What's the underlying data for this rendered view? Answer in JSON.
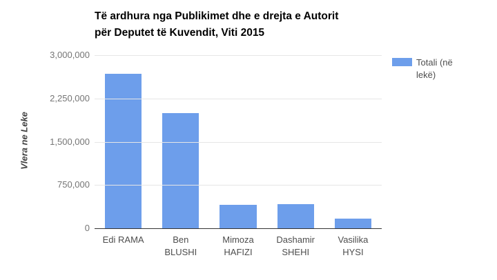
{
  "chart_data": {
    "type": "bar",
    "title": "Të ardhura nga Publikimet dhe e drejta e Autorit për Deputet të Kuvendit, Viti 2015",
    "title_lines": [
      "Të ardhura nga Publikimet dhe e drejta e Autorit",
      "për Deputet të Kuvendit, Viti 2015"
    ],
    "ylabel": "Vlera ne Leke",
    "xlabel": "",
    "categories": [
      "Edi RAMA",
      "Ben BLUSHI",
      "Mimoza HAFIZI",
      "Dashamir SHEHI",
      "Vasilika HYSI"
    ],
    "category_lines": [
      [
        "Edi RAMA"
      ],
      [
        "Ben",
        "BLUSHI"
      ],
      [
        "Mimoza",
        "HAFIZI"
      ],
      [
        "Dashamir",
        "SHEHI"
      ],
      [
        "Vasilika",
        "HYSI"
      ]
    ],
    "series": [
      {
        "name": "Totali (në lekë)",
        "values": [
          2680000,
          2000000,
          410000,
          415000,
          170000
        ]
      }
    ],
    "ylim": [
      0,
      3000000
    ],
    "yticks": [
      0,
      750000,
      1500000,
      2250000,
      3000000
    ],
    "ytick_labels": [
      "0",
      "750,000",
      "1,500,000",
      "2,250,000",
      "3,000,000"
    ],
    "grid": true,
    "legend_position": "right",
    "colors": {
      "bar": "#6d9eeb",
      "gridline": "#e6e6e6",
      "baseline": "#333333",
      "title_text": "#000000",
      "ytick_text": "#757575",
      "xlabel_text": "#4d4d4d",
      "legend_text": "#4d4d4d"
    }
  }
}
